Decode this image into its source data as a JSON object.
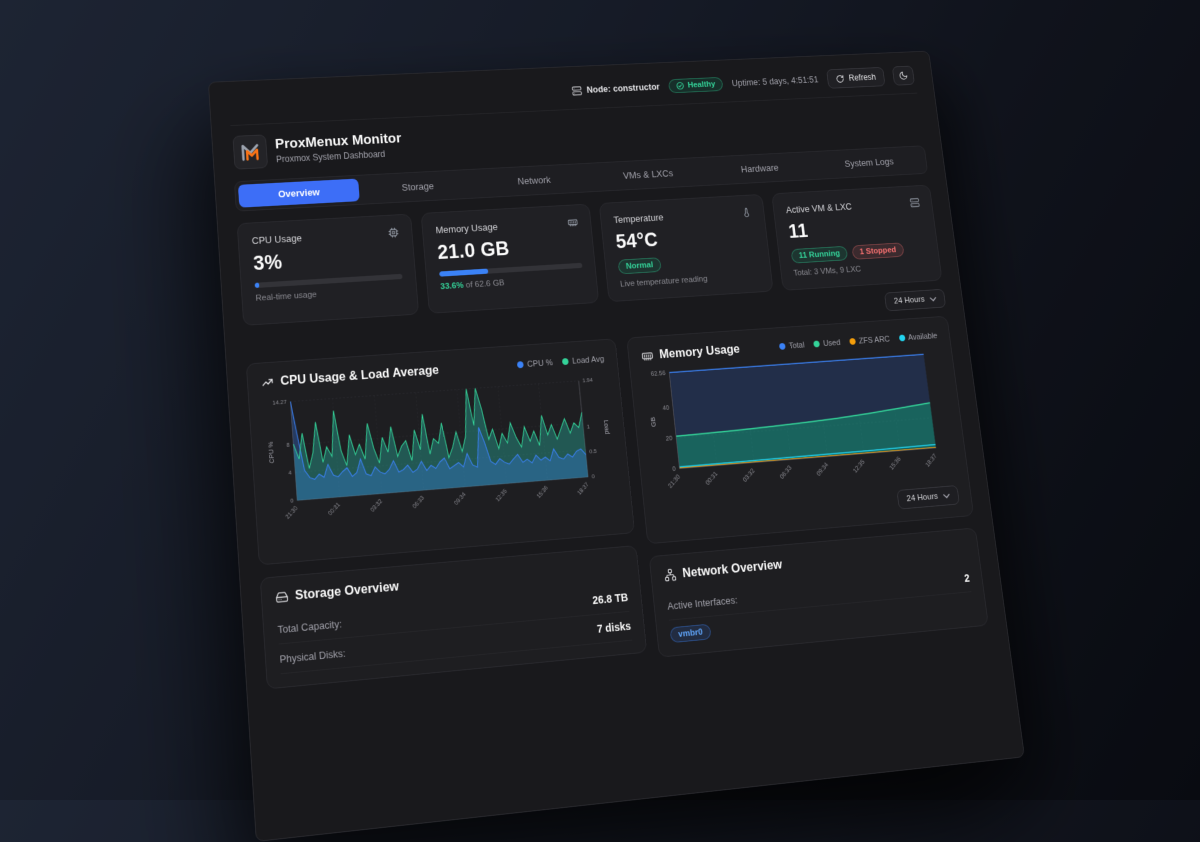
{
  "topbar": {
    "node_label": "Node: constructor",
    "health_label": "Healthy",
    "uptime": "Uptime: 5 days, 4:51:51",
    "refresh_label": "Refresh"
  },
  "header": {
    "title": "ProxMenux Monitor",
    "subtitle": "Proxmox System Dashboard"
  },
  "tabs": [
    {
      "label": "Overview",
      "active": true
    },
    {
      "label": "Storage",
      "active": false
    },
    {
      "label": "Network",
      "active": false
    },
    {
      "label": "VMs & LXCs",
      "active": false
    },
    {
      "label": "Hardware",
      "active": false
    },
    {
      "label": "System Logs",
      "active": false
    }
  ],
  "stats": {
    "cpu": {
      "label": "CPU Usage",
      "value": "3%",
      "percent": 3,
      "note": "Real-time usage"
    },
    "memory": {
      "label": "Memory Usage",
      "value": "21.0 GB",
      "percent": 33.6,
      "percent_label": "33.6%",
      "of_label": " of 62.6 GB"
    },
    "temperature": {
      "label": "Temperature",
      "value": "54°C",
      "badge": "Normal",
      "note": "Live temperature reading"
    },
    "vms": {
      "label": "Active VM & LXC",
      "value": "11",
      "running": "11 Running",
      "stopped": "1 Stopped",
      "note": "Total: 3 VMs, 9 LXC"
    }
  },
  "controls": {
    "range": "24 Hours"
  },
  "charts": {
    "cpu": {
      "title": "CPU Usage & Load Average"
    },
    "memory": {
      "title": "Memory Usage"
    }
  },
  "chart_data": [
    {
      "id": "cpu_load",
      "type": "area",
      "title": "CPU Usage & Load Average",
      "x_ticks": [
        "21:30",
        "00:31",
        "03:32",
        "06:33",
        "09:34",
        "12:35",
        "15:36",
        "18:37"
      ],
      "y_left": {
        "label": "CPU %",
        "ticks": [
          0,
          4,
          8,
          14.27
        ],
        "max": 14.27
      },
      "y_right": {
        "label": "Load",
        "ticks": [
          0,
          0.5,
          1,
          1.94
        ],
        "max": 1.94
      },
      "grid": true,
      "legend_position": "top-right",
      "series": [
        {
          "name": "CPU %",
          "axis": "left",
          "color": "#3b82f6",
          "fill": "rgba(59,130,246,0.30)",
          "values": [
            14.27,
            9.0,
            4.2,
            3.1,
            2.8,
            3.5,
            3.0,
            4.8,
            3.2,
            2.9,
            3.6,
            4.1,
            2.8,
            3.3,
            5.2,
            3.0,
            2.7,
            3.9,
            3.1,
            2.8,
            3.4,
            4.6,
            2.9,
            3.2,
            3.8,
            2.7,
            3.1,
            4.2,
            2.8,
            3.5,
            3.0,
            3.9,
            4.4,
            2.8,
            3.2,
            3.6,
            2.9,
            4.8,
            3.1,
            2.7,
            8.5,
            6.2,
            3.4,
            2.9,
            3.7,
            3.1,
            2.8,
            3.5,
            4.1,
            2.9,
            3.3,
            2.7,
            3.8,
            3.0,
            3.4,
            2.8,
            4.5,
            3.2,
            2.9,
            3.6,
            3.1,
            3.9,
            4.2,
            3.3
          ]
        },
        {
          "name": "Load Avg",
          "axis": "right",
          "color": "#34d399",
          "fill": "rgba(45,212,191,0.32)",
          "values": [
            1.1,
            0.8,
            1.3,
            0.6,
            0.9,
            1.5,
            0.7,
            1.0,
            0.8,
            1.7,
            0.9,
            0.6,
            1.2,
            0.8,
            1.0,
            0.7,
            1.4,
            0.9,
            0.6,
            1.1,
            0.8,
            1.3,
            0.7,
            0.9,
            1.0,
            0.6,
            1.2,
            0.8,
            1.5,
            0.7,
            1.0,
            0.9,
            1.3,
            0.6,
            0.8,
            1.1,
            0.7,
            1.0,
            1.94,
            1.2,
            1.94,
            1.5,
            0.9,
            1.1,
            0.7,
            1.0,
            0.8,
            1.2,
            0.9,
            0.7,
            1.1,
            0.8,
            1.0,
            0.7,
            1.3,
            0.9,
            1.1,
            0.8,
            1.0,
            1.2,
            0.9,
            1.1,
            1.0,
            1.3
          ]
        }
      ]
    },
    {
      "id": "memory",
      "type": "area",
      "title": "Memory Usage",
      "x_ticks": [
        "21:30",
        "00:31",
        "03:32",
        "06:33",
        "09:34",
        "12:35",
        "15:36",
        "18:37"
      ],
      "ylabel": "GB",
      "y_ticks": [
        0,
        20,
        40,
        62.56
      ],
      "ylim": [
        0,
        62.56
      ],
      "grid": true,
      "legend_position": "top-right",
      "series": [
        {
          "name": "Total",
          "color": "#3b82f6",
          "fill": "#222e49",
          "values": [
            62.56,
            62.56,
            62.56,
            62.56,
            62.56,
            62.56,
            62.56,
            62.56,
            62.56
          ]
        },
        {
          "name": "Used",
          "color": "#34d399",
          "fill": "rgba(20,184,166,0.45)",
          "values": [
            21.0,
            21.3,
            21.8,
            22.5,
            23.4,
            24.5,
            26.0,
            28.0,
            30.0
          ]
        },
        {
          "name": "ZFS ARC",
          "color": "#f59e0b",
          "fill": "none",
          "values": [
            0.4,
            0.4,
            0.4,
            0.4,
            0.4,
            0.4,
            0.4,
            0.4,
            0.4
          ]
        },
        {
          "name": "Available",
          "color": "#22d3ee",
          "fill": "none",
          "values": [
            1.1,
            1.2,
            1.3,
            1.4,
            1.5,
            1.6,
            1.8,
            2.0,
            2.2
          ]
        }
      ]
    }
  ],
  "storage": {
    "title": "Storage Overview",
    "rows": [
      {
        "label": "Total Capacity:",
        "value": "26.8 TB"
      },
      {
        "label": "Physical Disks:",
        "value": "7 disks"
      }
    ]
  },
  "network": {
    "title": "Network Overview",
    "rows": [
      {
        "label": "Active Interfaces:",
        "value": "2"
      }
    ],
    "interface_badge": "vmbr0"
  },
  "colors": {
    "accent_blue": "#3d6ef7",
    "progress_blue": "#3b82f6",
    "green": "#34d399",
    "red": "#f87171",
    "orange": "#f59e0b",
    "cyan": "#22d3ee"
  }
}
